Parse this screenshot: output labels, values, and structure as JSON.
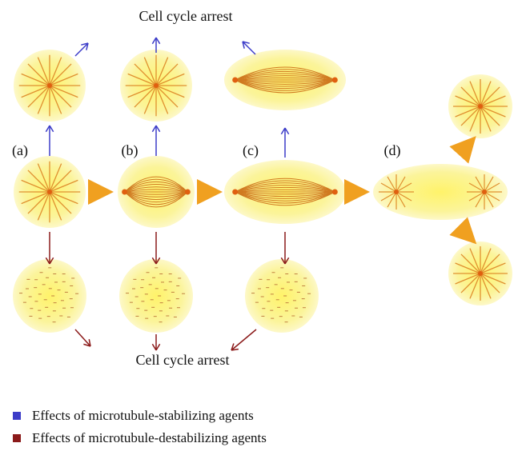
{
  "top_label": "Cell cycle arrest",
  "bottom_label": "Cell cycle arrest",
  "stages": [
    "(a)",
    "(b)",
    "(c)",
    "(d)"
  ],
  "legend": [
    {
      "label": "Effects of microtubule-stabilizing agents",
      "color": "#3c3cc8"
    },
    {
      "label": "Effects of microtubule-destabilizing agents",
      "color": "#8b1a1a"
    }
  ]
}
